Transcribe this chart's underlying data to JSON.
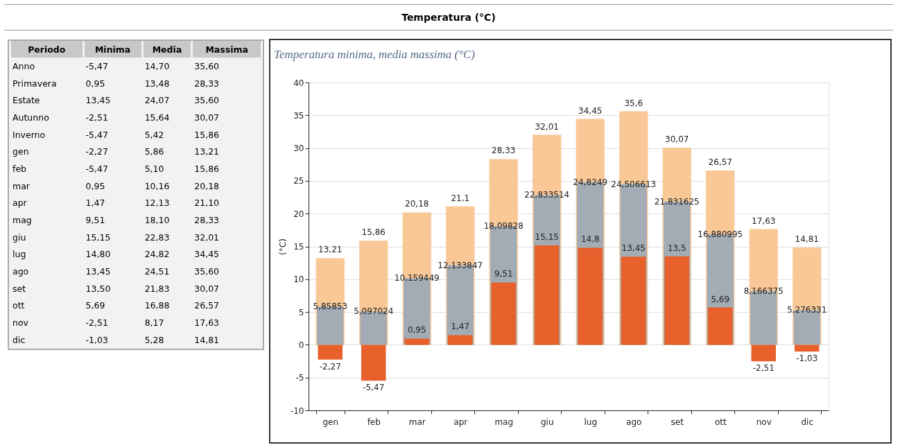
{
  "chart_data": [
    {
      "type": "other",
      "title": "Temperatura (°C)",
      "xlabel": "Periodo",
      "categories": [
        "Anno",
        "Primavera",
        "Estate",
        "Autunno",
        "Inverno",
        "gen",
        "feb",
        "mar",
        "apr",
        "mag",
        "giu",
        "lug",
        "ago",
        "set",
        "ott",
        "nov",
        "dic"
      ],
      "series": [
        {
          "name": "Minima",
          "values": [
            -5.47,
            0.95,
            13.45,
            -2.51,
            -5.47,
            -2.27,
            -5.47,
            0.95,
            1.47,
            9.51,
            15.15,
            14.8,
            13.45,
            13.5,
            5.69,
            -2.51,
            -1.03
          ],
          "value_labels": [
            "-5,47",
            "0,95",
            "13,45",
            "-2,51",
            "-5,47",
            "-2,27",
            "-5,47",
            "0,95",
            "1,47",
            "9,51",
            "15,15",
            "14,80",
            "13,45",
            "13,50",
            "5,69",
            "-2,51",
            "-1,03"
          ]
        },
        {
          "name": "Media",
          "values": [
            14.7,
            13.48,
            24.07,
            15.64,
            5.42,
            5.86,
            5.1,
            10.16,
            12.13,
            18.1,
            22.83,
            24.82,
            24.51,
            21.83,
            16.88,
            8.17,
            5.28
          ],
          "value_labels": [
            "14,70",
            "13,48",
            "24,07",
            "15,64",
            "5,42",
            "5,86",
            "5,10",
            "10,16",
            "12,13",
            "18,10",
            "22,83",
            "24,82",
            "24,51",
            "21,83",
            "16,88",
            "8,17",
            "5,28"
          ]
        },
        {
          "name": "Massima",
          "values": [
            35.6,
            28.33,
            35.6,
            30.07,
            15.86,
            13.21,
            15.86,
            20.18,
            21.1,
            28.33,
            32.01,
            34.45,
            35.6,
            30.07,
            26.57,
            17.63,
            14.81
          ],
          "value_labels": [
            "35,60",
            "28,33",
            "35,60",
            "30,07",
            "15,86",
            "13,21",
            "15,86",
            "20,18",
            "21,10",
            "28,33",
            "32,01",
            "34,45",
            "35,60",
            "30,07",
            "26,57",
            "17,63",
            "14,81"
          ]
        }
      ]
    },
    {
      "type": "bar",
      "title": "Temperatura minima, media massima (°C)",
      "ylabel": "(°C)",
      "categories": [
        "gen",
        "feb",
        "mar",
        "apr",
        "mag",
        "giu",
        "lug",
        "ago",
        "set",
        "ott",
        "nov",
        "dic"
      ],
      "series": [
        {
          "color": "#f9c896",
          "values": [
            13.21,
            15.86,
            20.18,
            21.1,
            28.33,
            32.01,
            34.45,
            35.6,
            30.07,
            26.57,
            17.63,
            14.81
          ],
          "value_labels": [
            "13,21",
            "15,86",
            "20,18",
            "21,1",
            "28,33",
            "32,01",
            "34,45",
            "35,6",
            "30,07",
            "26,57",
            "17,63",
            "14,81"
          ]
        },
        {
          "color": "#a3acb5",
          "values": [
            5.85853,
            5.097024,
            10.159449,
            12.133847,
            18.09828,
            22.833514,
            24.8249,
            24.506613,
            21.831625,
            16.880995,
            8.166375,
            5.276331
          ],
          "value_labels": [
            "5,85853",
            "5,097024",
            "10,159449",
            "12,133847",
            "18,09828",
            "22,833514",
            "24,8249",
            "24,506613",
            "21,831625",
            "16,880995",
            "8,166375",
            "5,276331"
          ]
        },
        {
          "color": "#e8612c",
          "values": [
            -2.27,
            -5.47,
            0.95,
            1.47,
            9.51,
            15.15,
            14.8,
            13.45,
            13.5,
            5.69,
            -2.51,
            -1.03
          ],
          "value_labels": [
            "-2,27",
            "-5,47",
            "0,95",
            "1,47",
            "9,51",
            "15,15",
            "14,8",
            "13,45",
            "13,5",
            "5,69",
            "-2,51",
            "-1,03"
          ]
        }
      ],
      "ylim": [
        -10,
        40
      ],
      "yticks": [
        -10,
        -5,
        0,
        5,
        10,
        15,
        20,
        25,
        30,
        35,
        40
      ],
      "grid": "y"
    }
  ]
}
